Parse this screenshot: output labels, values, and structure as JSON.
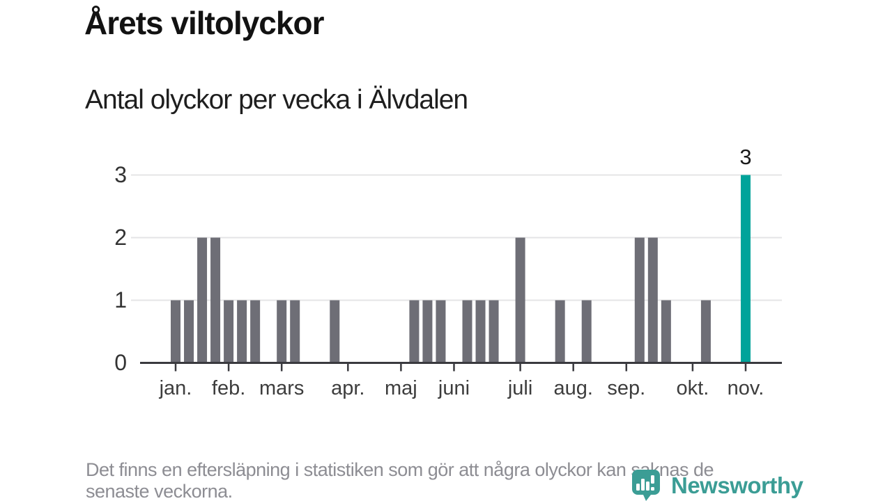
{
  "header": {
    "title": "Årets viltolyckor",
    "subtitle": "Antal olyckor per vecka i Älvdalen"
  },
  "footer": {
    "line1": "Det finns en eftersläpning i statistiken som gör att några olyckor kan saknas de",
    "line2": "senaste veckorna."
  },
  "branding": {
    "name": "Newsworthy",
    "color": "#3b9d95"
  },
  "chart_data": {
    "type": "bar",
    "title": "Årets viltolyckor",
    "subtitle": "Antal olyckor per vecka i Älvdalen",
    "values": [
      1,
      1,
      2,
      2,
      1,
      1,
      1,
      0,
      1,
      1,
      0,
      0,
      1,
      0,
      0,
      0,
      0,
      0,
      1,
      1,
      1,
      0,
      1,
      1,
      1,
      0,
      2,
      0,
      0,
      1,
      0,
      1,
      0,
      0,
      0,
      2,
      2,
      1,
      0,
      0,
      1,
      0,
      0,
      3
    ],
    "month_ticks": [
      {
        "label": "jan.",
        "week": 0
      },
      {
        "label": "feb.",
        "week": 4
      },
      {
        "label": "mars",
        "week": 8
      },
      {
        "label": "apr.",
        "week": 13
      },
      {
        "label": "maj",
        "week": 17
      },
      {
        "label": "juni",
        "week": 21
      },
      {
        "label": "juli",
        "week": 26
      },
      {
        "label": "aug.",
        "week": 30
      },
      {
        "label": "sep.",
        "week": 34
      },
      {
        "label": "okt.",
        "week": 39
      },
      {
        "label": "nov.",
        "week": 43
      }
    ],
    "y_ticks": [
      0,
      1,
      2,
      3
    ],
    "ylim": [
      0,
      3
    ],
    "highlight_index": 43,
    "highlight_value_label": "3",
    "bar_color": "#6e6e76",
    "highlight_color": "#00a39a",
    "axis_color": "#3a3a3f",
    "grid_color": "#e4e4e6",
    "y_label_color": "#333333",
    "x_label_color": "#3d3d3d",
    "value_label_color": "#1a1a1a",
    "grid": true,
    "legend_position": "none"
  }
}
